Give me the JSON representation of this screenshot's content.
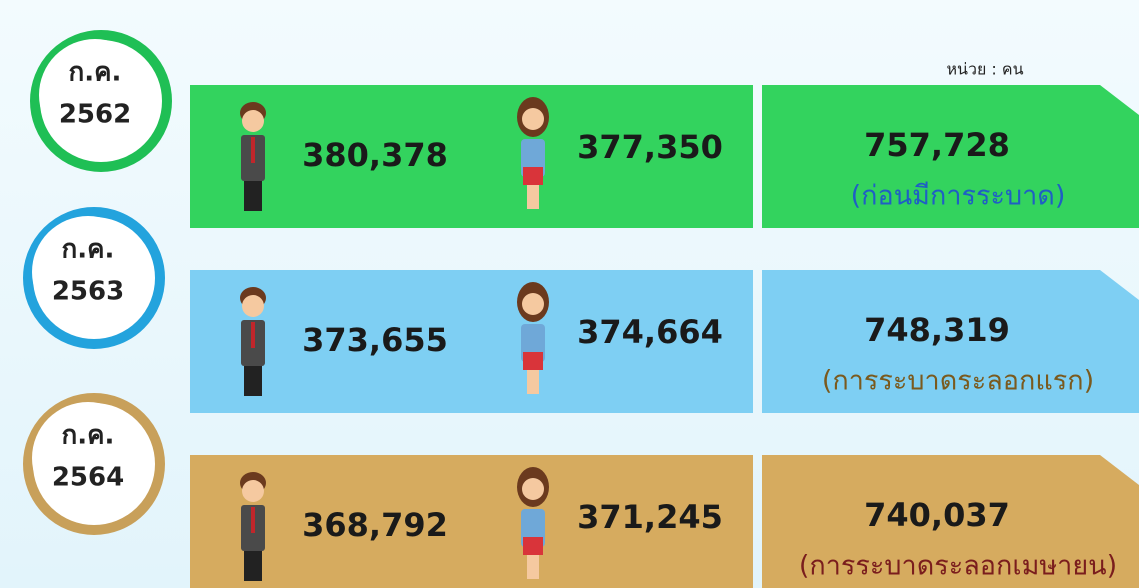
{
  "unit_label": "หน่วย : คน",
  "rows": [
    {
      "period": [
        "ก.ค.",
        "2562"
      ],
      "male": "380,378",
      "female": "377,350",
      "total": "757,728",
      "note": "(ก่อนมีการระบาด)"
    },
    {
      "period": [
        "ก.ค.",
        "2563"
      ],
      "male": "373,655",
      "female": "374,664",
      "total": "748,319",
      "note": "(การระบาดระลอกแรก)"
    },
    {
      "period": [
        "ก.ค.",
        "2564"
      ],
      "male": "368,792",
      "female": "371,245",
      "total": "740,037",
      "note": "(การระบาดระลอกเมษายน)"
    }
  ]
}
